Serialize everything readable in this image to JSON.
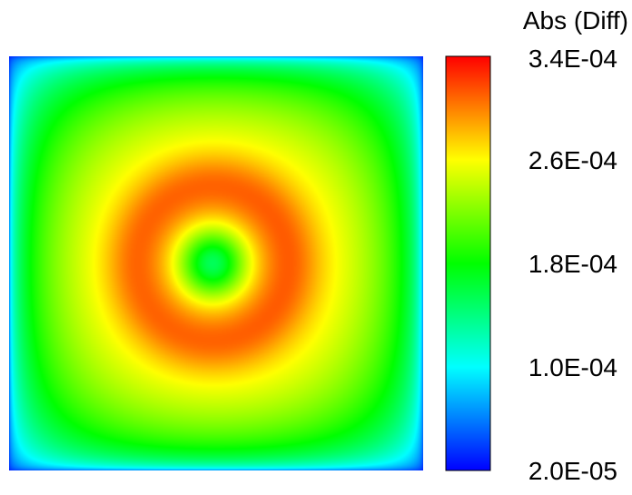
{
  "chart_data": {
    "type": "heatmap",
    "title": "",
    "xlabel": "",
    "ylabel": "",
    "grid": false,
    "colorbar": {
      "title": "Abs (Diff)",
      "placement": "right",
      "min": 2e-05,
      "max": 0.00034,
      "ticks": [
        {
          "value": 0.00034,
          "label": "3.4E-04"
        },
        {
          "value": 0.00026,
          "label": "2.6E-04"
        },
        {
          "value": 0.00018,
          "label": "1.8E-04"
        },
        {
          "value": 0.0001,
          "label": "1.0E-04"
        },
        {
          "value": 2e-05,
          "label": "2.0E-05"
        }
      ],
      "colors": [
        "#0000ff",
        "#00ffff",
        "#00ff00",
        "#ffff00",
        "#ff0000"
      ]
    }
  }
}
